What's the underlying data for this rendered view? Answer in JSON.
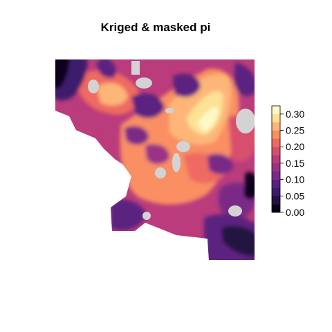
{
  "title": "Kriged & masked pi",
  "legend": {
    "tick_labels": [
      "0.30",
      "0.25",
      "0.20",
      "0.15",
      "0.10",
      "0.05",
      "0.00"
    ],
    "bins": [
      {
        "from": 0.0,
        "to": 0.025,
        "color": "#07051a"
      },
      {
        "from": 0.025,
        "to": 0.05,
        "color": "#211240"
      },
      {
        "from": 0.05,
        "to": 0.075,
        "color": "#3d1a6c"
      },
      {
        "from": 0.075,
        "to": 0.1,
        "color": "#5b2180"
      },
      {
        "from": 0.1,
        "to": 0.125,
        "color": "#7a2a86"
      },
      {
        "from": 0.125,
        "to": 0.15,
        "color": "#9a3285"
      },
      {
        "from": 0.15,
        "to": 0.175,
        "color": "#ba3c7c"
      },
      {
        "from": 0.175,
        "to": 0.2,
        "color": "#d84f6d"
      },
      {
        "from": 0.2,
        "to": 0.225,
        "color": "#ee6a62"
      },
      {
        "from": 0.225,
        "to": 0.25,
        "color": "#f98f63"
      },
      {
        "from": 0.25,
        "to": 0.275,
        "color": "#fdb678"
      },
      {
        "from": 0.275,
        "to": 0.3,
        "color": "#fde195"
      },
      {
        "from": 0.3,
        "to": 0.325,
        "color": "#fdf9c4"
      }
    ]
  },
  "mask_color": "#d3d3d3"
}
